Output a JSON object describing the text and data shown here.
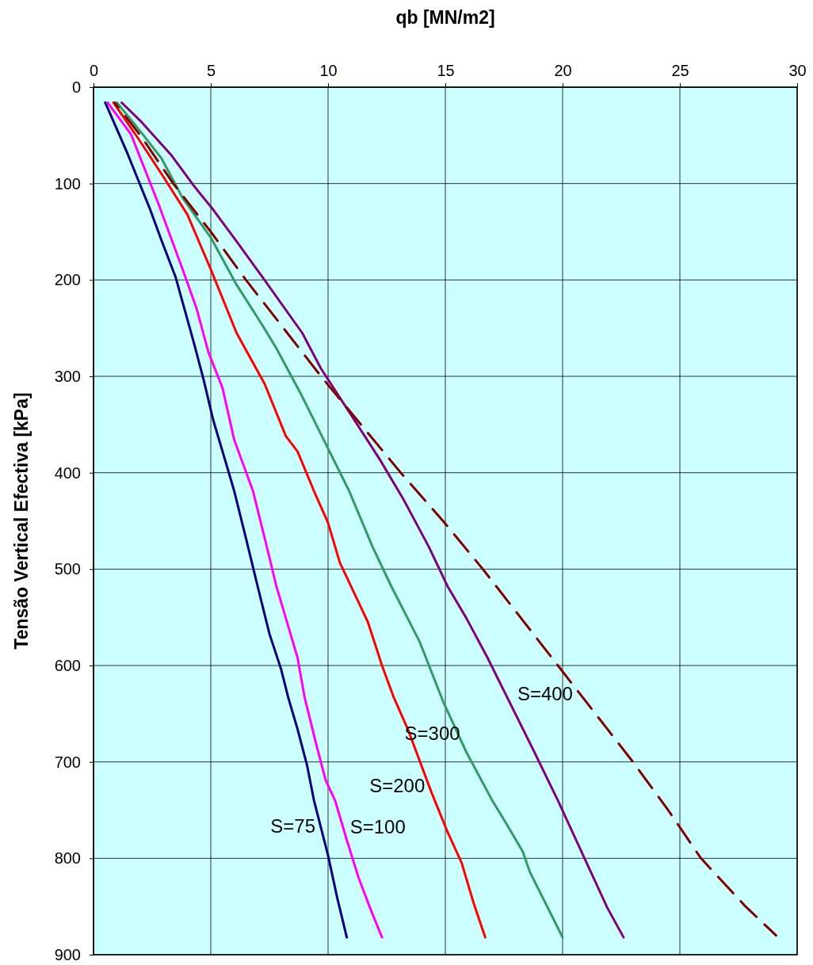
{
  "chart_data": {
    "type": "line",
    "xlabel": "qb [MN/m2]",
    "ylabel": "Tensão Vertical Efectiva [kPa]",
    "xlim": [
      0,
      30
    ],
    "xticks": [
      0,
      5,
      10,
      15,
      20,
      25,
      30
    ],
    "ylim": [
      900,
      0
    ],
    "yticks": [
      0,
      100,
      200,
      300,
      400,
      500,
      600,
      700,
      800,
      900
    ],
    "grid": true,
    "series": [
      {
        "name": "S=75",
        "color": "#000080",
        "line_style": "solid",
        "x": [
          0.5,
          1.4,
          2.4,
          2.9,
          3.5,
          4.3,
          4.7,
          5.1,
          5.6,
          6.0,
          6.5,
          7.0,
          7.5,
          8.0,
          8.3,
          8.7,
          9.1,
          9.4,
          10.0,
          10.4,
          10.8
        ],
        "values": [
          16,
          66,
          126,
          159,
          197,
          267,
          304,
          345,
          386,
          419,
          468,
          518,
          567,
          604,
          633,
          666,
          703,
          740,
          797,
          842,
          882
        ]
      },
      {
        "name": "S=100",
        "color": "#ff00ff",
        "line_style": "solid",
        "x": [
          0.6,
          1.6,
          2.8,
          3.8,
          4.4,
          4.9,
          5.5,
          6.0,
          6.8,
          7.3,
          7.8,
          8.3,
          8.7,
          9.0,
          9.5,
          9.9,
          10.3,
          10.8,
          11.3,
          11.8,
          12.3
        ],
        "values": [
          16,
          49,
          123,
          189,
          230,
          275,
          312,
          366,
          419,
          468,
          518,
          559,
          592,
          633,
          682,
          719,
          740,
          781,
          820,
          852,
          882
        ]
      },
      {
        "name": "S=200",
        "color": "#ff0000",
        "line_style": "solid",
        "x": [
          0.85,
          1.9,
          2.9,
          4.0,
          5.0,
          6.1,
          7.3,
          8.2,
          8.7,
          9.4,
          10.0,
          10.5,
          11.7,
          12.3,
          12.8,
          13.4,
          14.4,
          15.1,
          15.7,
          16.2,
          16.7
        ],
        "values": [
          16,
          53,
          90,
          132,
          189,
          255,
          308,
          362,
          378,
          419,
          452,
          493,
          555,
          600,
          633,
          666,
          731,
          773,
          805,
          846,
          882
        ]
      },
      {
        "name": "S=300",
        "color": "#339966",
        "line_style": "solid",
        "x": [
          1.0,
          2.1,
          2.9,
          3.8,
          5.0,
          6.1,
          7.2,
          7.8,
          8.9,
          9.9,
          10.9,
          11.9,
          12.7,
          13.9,
          14.9,
          15.9,
          17.0,
          17.6,
          18.3,
          18.6,
          20.0
        ],
        "values": [
          16,
          49,
          74,
          115,
          156,
          205,
          247,
          271,
          321,
          370,
          419,
          477,
          518,
          575,
          637,
          690,
          740,
          764,
          793,
          814,
          882
        ]
      },
      {
        "name": "S=400",
        "color": "#800080",
        "line_style": "solid",
        "x": [
          1.2,
          2.0,
          3.3,
          4.3,
          5.1,
          6.1,
          7.2,
          8.9,
          9.7,
          10.9,
          12.2,
          13.2,
          14.3,
          15.1,
          15.9,
          16.8,
          17.8,
          18.8,
          19.8,
          20.5,
          21.2,
          21.9,
          22.6
        ],
        "values": [
          16,
          35,
          70,
          103,
          127,
          160,
          197,
          255,
          292,
          337,
          386,
          427,
          477,
          518,
          551,
          592,
          641,
          690,
          740,
          777,
          814,
          851,
          882
        ]
      },
      {
        "color": "#800000",
        "line_style": "dashed",
        "x": [
          0.9,
          2.0,
          3.4,
          5.0,
          6.5,
          8.1,
          9.7,
          11.4,
          13.1,
          14.9,
          16.6,
          18.2,
          19.8,
          21.4,
          23.0,
          24.5,
          25.9,
          27.8,
          29.1
        ],
        "values": [
          16,
          50,
          100,
          150,
          200,
          250,
          300,
          350,
          400,
          450,
          500,
          550,
          600,
          650,
          700,
          750,
          800,
          850,
          880
        ]
      }
    ]
  }
}
